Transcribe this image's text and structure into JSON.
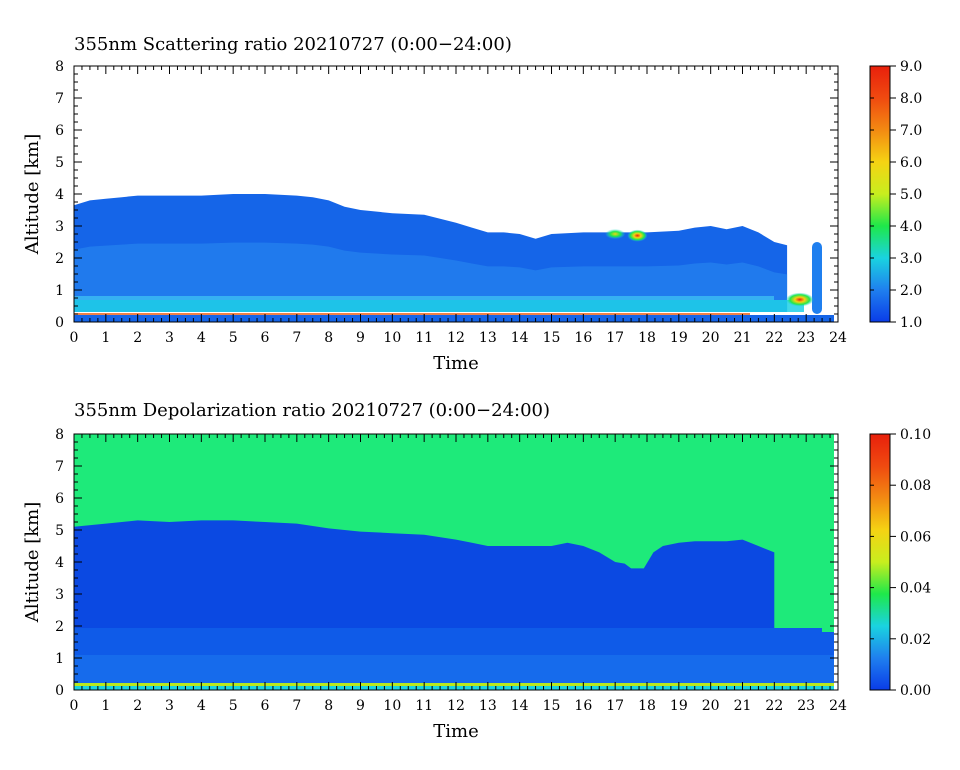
{
  "chart_data": [
    {
      "type": "heatmap",
      "title": "355nm Scattering ratio  20210727 (0:00−24:00)",
      "xlabel": "Time",
      "ylabel": "Altitude [km]",
      "xlim": [
        0,
        24
      ],
      "ylim": [
        0,
        8
      ],
      "x_ticks": [
        "0",
        "1",
        "2",
        "3",
        "4",
        "5",
        "6",
        "7",
        "8",
        "9",
        "10",
        "11",
        "12",
        "13",
        "14",
        "15",
        "16",
        "17",
        "18",
        "19",
        "20",
        "21",
        "22",
        "23",
        "24"
      ],
      "y_ticks": [
        "0",
        "1",
        "2",
        "3",
        "4",
        "5",
        "6",
        "7",
        "8"
      ],
      "colorbar": {
        "range": [
          1.0,
          9.0
        ],
        "ticks": [
          "1.0",
          "2.0",
          "3.0",
          "4.0",
          "5.0",
          "6.0",
          "7.0",
          "8.0",
          "9.0"
        ]
      },
      "layer_top_km": {
        "time": [
          0,
          0.5,
          1,
          1.5,
          2,
          3,
          4,
          5,
          6,
          7,
          7.5,
          8,
          8.5,
          9,
          10,
          11,
          12,
          12.5,
          13,
          13.5,
          14,
          14.5,
          15,
          16,
          17,
          18,
          19,
          19.5,
          20,
          20.5,
          21,
          21.5,
          22,
          22.4
        ],
        "altitude": [
          3.65,
          3.8,
          3.85,
          3.9,
          3.95,
          3.95,
          3.95,
          4.0,
          4.0,
          3.95,
          3.9,
          3.8,
          3.6,
          3.5,
          3.4,
          3.35,
          3.1,
          2.95,
          2.8,
          2.8,
          2.75,
          2.6,
          2.75,
          2.8,
          2.8,
          2.8,
          2.85,
          2.95,
          3.0,
          2.9,
          3.0,
          2.8,
          2.5,
          2.4
        ]
      },
      "features": [
        {
          "time": 17.0,
          "altitude_km": 2.75,
          "value": 4.0
        },
        {
          "time": 17.7,
          "altitude_km": 2.7,
          "value": 7.0
        },
        {
          "time": 22.8,
          "altitude_km": 0.7,
          "value": 8.5
        }
      ]
    },
    {
      "type": "heatmap",
      "title": "355nm Depolarization ratio  20210727 (0:00−24:00)",
      "xlabel": "Time",
      "ylabel": "Altitude [km]",
      "xlim": [
        0,
        24
      ],
      "ylim": [
        0,
        8
      ],
      "x_ticks": [
        "0",
        "1",
        "2",
        "3",
        "4",
        "5",
        "6",
        "7",
        "8",
        "9",
        "10",
        "11",
        "12",
        "13",
        "14",
        "15",
        "16",
        "17",
        "18",
        "19",
        "20",
        "21",
        "22",
        "23",
        "24"
      ],
      "y_ticks": [
        "0",
        "1",
        "2",
        "3",
        "4",
        "5",
        "6",
        "7",
        "8"
      ],
      "colorbar": {
        "range": [
          0.0,
          0.1
        ],
        "ticks": [
          "0.00",
          "0.02",
          "0.04",
          "0.06",
          "0.08",
          "0.10"
        ]
      },
      "layer_top_km": {
        "time": [
          0,
          1,
          2,
          3,
          4,
          5,
          6,
          7,
          8,
          9,
          10,
          11,
          12,
          12.5,
          13,
          14,
          15,
          15.5,
          16,
          16.5,
          17,
          17.3,
          17.5,
          17.9,
          18.2,
          18.5,
          19,
          19.5,
          20,
          20.5,
          21,
          21.5,
          22
        ],
        "altitude": [
          5.1,
          5.2,
          5.3,
          5.25,
          5.3,
          5.3,
          5.25,
          5.2,
          5.05,
          4.95,
          4.9,
          4.85,
          4.7,
          4.6,
          4.5,
          4.5,
          4.5,
          4.6,
          4.5,
          4.3,
          4.0,
          3.95,
          3.8,
          3.8,
          4.3,
          4.5,
          4.6,
          4.65,
          4.65,
          4.65,
          4.7,
          4.5,
          4.3
        ]
      },
      "background_value": 0.04
    }
  ]
}
